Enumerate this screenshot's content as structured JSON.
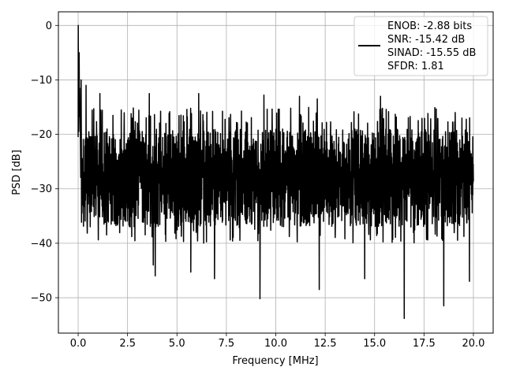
{
  "chart_data": {
    "type": "line",
    "title": "",
    "xlabel": "Frequency [MHz]",
    "ylabel": "PSD [dB]",
    "xlim": [
      -1.0,
      21.0
    ],
    "ylim": [
      -56.5,
      2.5
    ],
    "xticks": [
      0.0,
      2.5,
      5.0,
      7.5,
      10.0,
      12.5,
      15.0,
      17.5,
      20.0
    ],
    "xtick_labels": [
      "0.0",
      "2.5",
      "5.0",
      "7.5",
      "10.0",
      "12.5",
      "15.0",
      "17.5",
      "20.0"
    ],
    "yticks": [
      0,
      -10,
      -20,
      -30,
      -40,
      -50
    ],
    "ytick_labels": [
      "0",
      "−10",
      "−20",
      "−30",
      "−40",
      "−50"
    ],
    "grid": true,
    "legend_placement": "top-right",
    "legend_lines": [
      "ENOB: -2.88 bits",
      "SNR: -15.42 dB",
      "SINAD: -15.55 dB",
      "SFDR: 1.81"
    ],
    "series": [
      {
        "name": "ENOB: -2.88 bits\nSNR: -15.42 dB\nSINAD: -15.55 dB\nSFDR: 1.81",
        "color": "#000000",
        "x_range": [
          0.0,
          20.0
        ],
        "points": 2000,
        "description_values": {
          "peak_at_zero": 0.0,
          "typical_upper_envelope": -17,
          "typical_lower_envelope": -38
        },
        "notable_minima": [
          {
            "x": 0.4,
            "y": -42.5
          },
          {
            "x": 3.8,
            "y": -44.0
          },
          {
            "x": 3.9,
            "y": -46.0
          },
          {
            "x": 5.7,
            "y": -45.3
          },
          {
            "x": 6.9,
            "y": -46.5
          },
          {
            "x": 9.2,
            "y": -50.2
          },
          {
            "x": 12.2,
            "y": -48.5
          },
          {
            "x": 14.5,
            "y": -46.5
          },
          {
            "x": 16.5,
            "y": -53.8
          },
          {
            "x": 18.5,
            "y": -51.5
          },
          {
            "x": 19.8,
            "y": -47.0
          }
        ],
        "notable_maxima": [
          {
            "x": 0.0,
            "y": 0.0
          },
          {
            "x": 0.05,
            "y": -5.0
          },
          {
            "x": 0.15,
            "y": -10.0
          },
          {
            "x": 0.4,
            "y": -11.0
          },
          {
            "x": 1.1,
            "y": -12.5
          },
          {
            "x": 3.6,
            "y": -12.5
          },
          {
            "x": 6.1,
            "y": -12.5
          },
          {
            "x": 9.4,
            "y": -12.8
          },
          {
            "x": 11.2,
            "y": -13.0
          },
          {
            "x": 12.1,
            "y": -13.5
          },
          {
            "x": 15.3,
            "y": -13.0
          }
        ]
      }
    ]
  }
}
